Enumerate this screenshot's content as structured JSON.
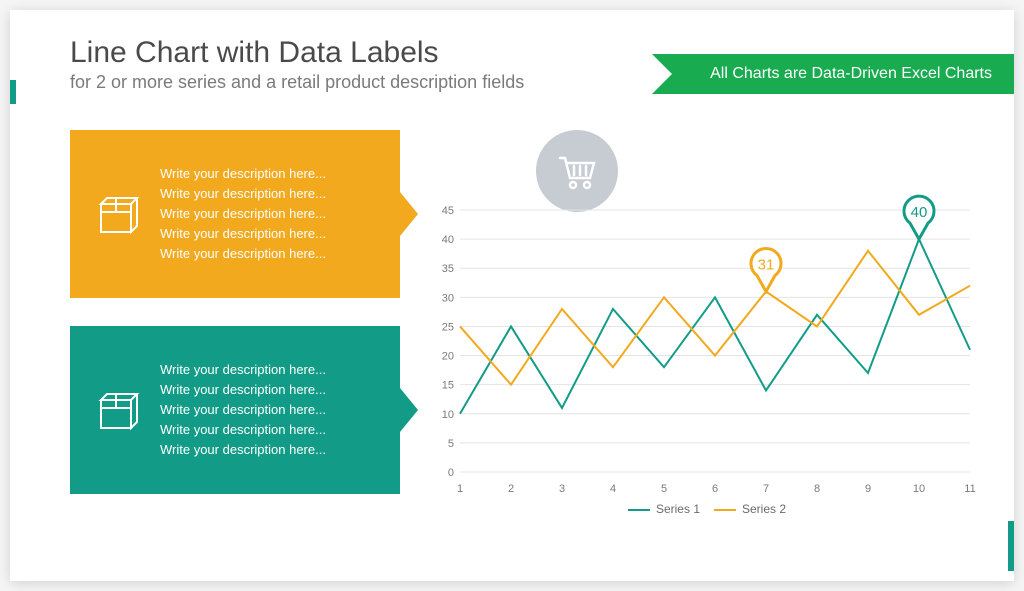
{
  "header": {
    "title": "Line Chart with Data Labels",
    "subtitle": "for 2 or more series and a retail product description fields"
  },
  "ribbon": {
    "text": "All Charts are Data-Driven Excel Charts"
  },
  "colors": {
    "orange": "#f2a91e",
    "teal": "#129c87",
    "ribbon_green": "#18ab4f",
    "cart_badge": "#c6ccd2",
    "grid": "#e4e4e4",
    "axis_text": "#7a7a7a"
  },
  "cards": [
    {
      "color": "orange",
      "lines": [
        "Write your description here...",
        "Write your description here...",
        "Write your description here...",
        "Write your description here...",
        "Write your description here..."
      ]
    },
    {
      "color": "teal",
      "lines": [
        "Write your description here...",
        "Write your description here...",
        "Write your description here...",
        "Write your description here...",
        "Write your description here..."
      ]
    }
  ],
  "chart": {
    "type": "line",
    "categories": [
      1,
      2,
      3,
      4,
      5,
      6,
      7,
      8,
      9,
      10,
      11
    ],
    "series": [
      {
        "name": "Series 1",
        "color": "#129c87",
        "values": [
          10,
          25,
          11,
          28,
          18,
          30,
          14,
          27,
          17,
          40,
          21
        ]
      },
      {
        "name": "Series 2",
        "color": "#f2a91e",
        "values": [
          25,
          15,
          28,
          18,
          30,
          20,
          31,
          25,
          38,
          27,
          32
        ]
      }
    ],
    "ylim": [
      0,
      45
    ],
    "ytick_step": 5,
    "grid_color": "#e4e4e4",
    "background_color": "#ffffff",
    "line_width": 2,
    "axis_fontsize": 11,
    "callouts": [
      {
        "series": 1,
        "index": 6,
        "value": 31,
        "color": "#f2a91e"
      },
      {
        "series": 0,
        "index": 9,
        "value": 40,
        "color": "#129c87"
      }
    ],
    "legend_position": "bottom"
  }
}
